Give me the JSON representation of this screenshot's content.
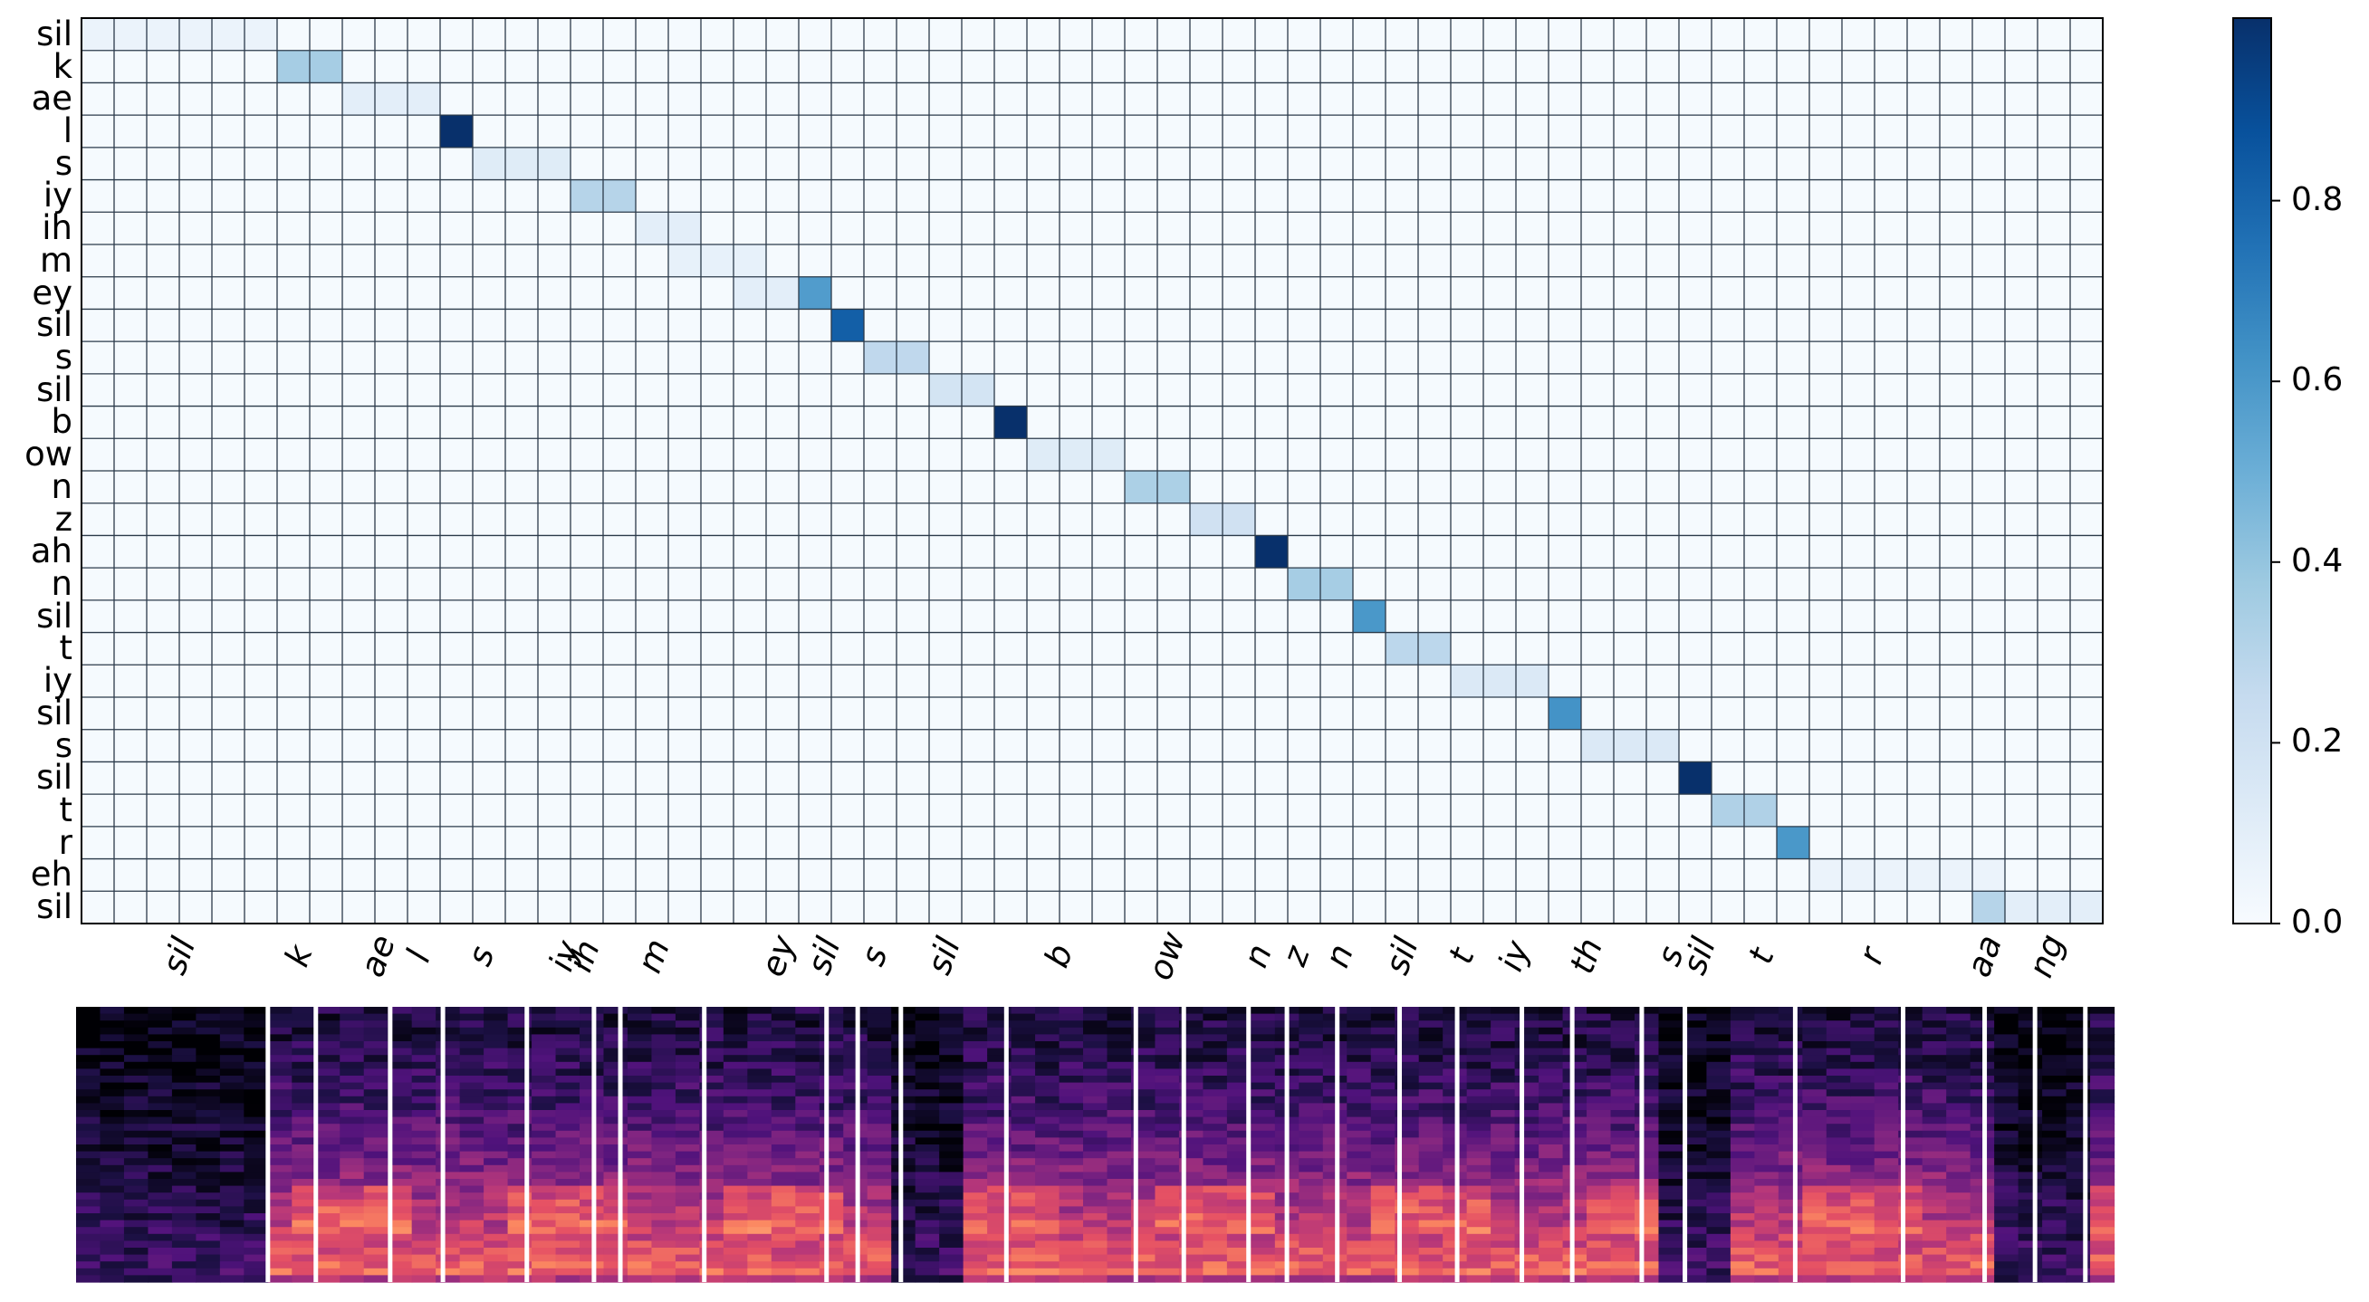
{
  "chart_data": [
    {
      "type": "heatmap",
      "description_role": "alignment matrix (phones x frames)",
      "y_tick_labels": [
        "sil",
        "k",
        "ae",
        "l",
        "s",
        "iy",
        "ih",
        "m",
        "ey",
        "sil",
        "s",
        "sil",
        "b",
        "ow",
        "n",
        "z",
        "ah",
        "n",
        "sil",
        "t",
        "iy",
        "sil",
        "s",
        "sil",
        "t",
        "r",
        "eh",
        "sil"
      ],
      "x_tick_labels": [
        "sil",
        "k",
        "ae",
        "l",
        "s",
        "iy",
        "ih",
        "m",
        "ey",
        "sil",
        "s",
        "sil",
        "b",
        "ow",
        "n",
        "z",
        "n",
        "sil",
        "t",
        "iy",
        "th",
        "s",
        "sil",
        "t",
        "r",
        "aa",
        "ng"
      ],
      "n_columns": 62,
      "cells": [
        {
          "row": 0,
          "c0": 0,
          "c1": 6,
          "value": 0.06
        },
        {
          "row": 1,
          "c0": 6,
          "c1": 8,
          "value": 0.35
        },
        {
          "row": 2,
          "c0": 8,
          "c1": 11,
          "value": 0.1
        },
        {
          "row": 3,
          "c0": 11,
          "c1": 12,
          "value": 1.0
        },
        {
          "row": 4,
          "c0": 12,
          "c1": 15,
          "value": 0.12
        },
        {
          "row": 5,
          "c0": 15,
          "c1": 17,
          "value": 0.3
        },
        {
          "row": 6,
          "c0": 17,
          "c1": 19,
          "value": 0.1
        },
        {
          "row": 7,
          "c0": 18,
          "c1": 21,
          "value": 0.08
        },
        {
          "row": 8,
          "c0": 20,
          "c1": 23,
          "value": 0.1
        },
        {
          "row": 8,
          "c0": 22,
          "c1": 23,
          "value": 0.58
        },
        {
          "row": 9,
          "c0": 23,
          "c1": 24,
          "value": 0.82
        },
        {
          "row": 10,
          "c0": 24,
          "c1": 26,
          "value": 0.27
        },
        {
          "row": 11,
          "c0": 26,
          "c1": 28,
          "value": 0.18
        },
        {
          "row": 12,
          "c0": 28,
          "c1": 29,
          "value": 1.0
        },
        {
          "row": 13,
          "c0": 29,
          "c1": 32,
          "value": 0.12
        },
        {
          "row": 14,
          "c0": 32,
          "c1": 34,
          "value": 0.33
        },
        {
          "row": 15,
          "c0": 34,
          "c1": 36,
          "value": 0.2
        },
        {
          "row": 16,
          "c0": 36,
          "c1": 37,
          "value": 1.0
        },
        {
          "row": 17,
          "c0": 37,
          "c1": 39,
          "value": 0.35
        },
        {
          "row": 18,
          "c0": 39,
          "c1": 40,
          "value": 0.6
        },
        {
          "row": 19,
          "c0": 40,
          "c1": 42,
          "value": 0.28
        },
        {
          "row": 20,
          "c0": 42,
          "c1": 45,
          "value": 0.14
        },
        {
          "row": 21,
          "c0": 45,
          "c1": 46,
          "value": 0.62
        },
        {
          "row": 22,
          "c0": 46,
          "c1": 49,
          "value": 0.14
        },
        {
          "row": 23,
          "c0": 49,
          "c1": 50,
          "value": 1.0
        },
        {
          "row": 24,
          "c0": 50,
          "c1": 52,
          "value": 0.32
        },
        {
          "row": 25,
          "c0": 52,
          "c1": 53,
          "value": 0.6
        },
        {
          "row": 26,
          "c0": 53,
          "c1": 58,
          "value": 0.06
        },
        {
          "row": 26,
          "c0": 58,
          "c1": 59,
          "value": 0.06
        },
        {
          "row": 27,
          "c0": 58,
          "c1": 59,
          "value": 0.3
        },
        {
          "row": 27,
          "c0": 59,
          "c1": 62,
          "value": 0.1
        }
      ],
      "colorbar": {
        "colormap": "Blues",
        "range": [
          0.0,
          1.0
        ],
        "tick_labels": [
          "0.0",
          "0.2",
          "0.4",
          "0.6",
          "0.8"
        ]
      }
    },
    {
      "type": "heatmap",
      "description_role": "spectrogram with segment boundaries",
      "colormap": "magma",
      "segment_boundaries_frames": [
        6,
        8,
        11,
        12,
        15,
        17,
        17.5,
        19,
        22,
        23,
        24,
        26,
        27,
        29,
        32,
        34,
        35,
        36,
        37,
        38,
        40,
        42,
        45,
        46,
        47,
        50,
        53,
        55,
        56.5,
        58,
        60
      ]
    }
  ],
  "colors": {
    "grid_line": "#2b3a4a",
    "boundary_line": "#ffffff"
  }
}
